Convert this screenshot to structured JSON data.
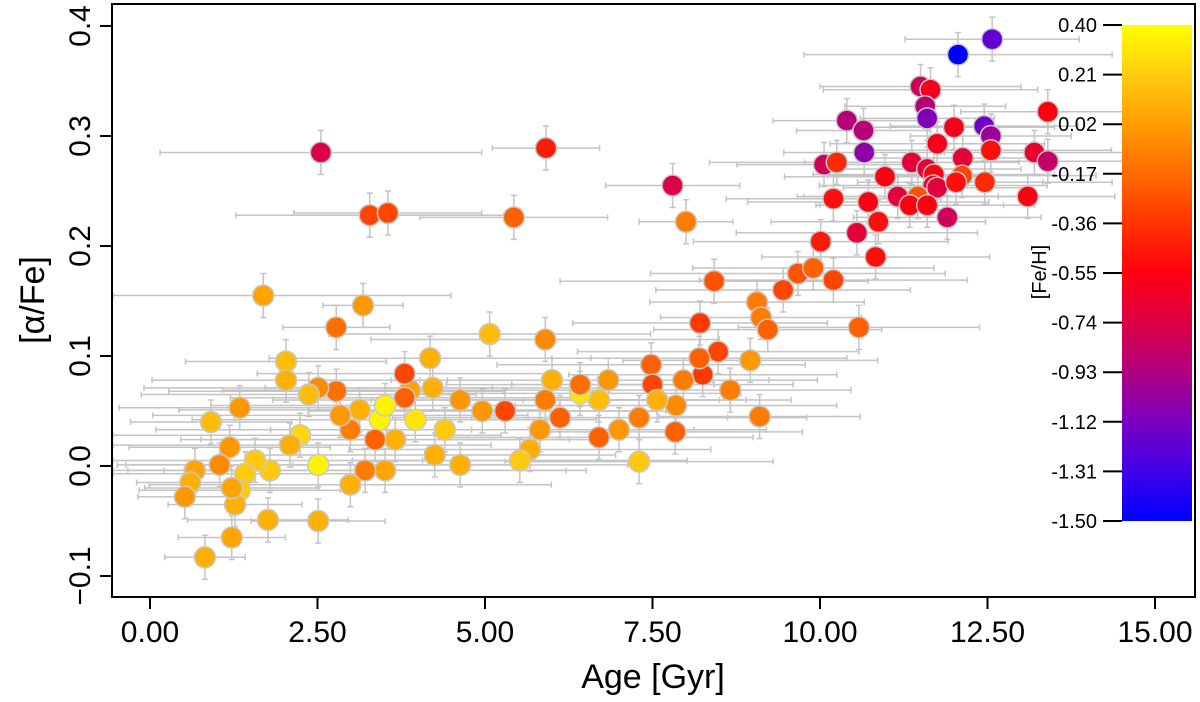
{
  "chart_data": {
    "type": "scatter",
    "title": "",
    "xlabel": "Age [Gyr]",
    "ylabel": "[α/Fe]",
    "xlim": [
      -0.5,
      15.5
    ],
    "ylim": [
      -0.12,
      0.42
    ],
    "xticks": [
      "0.00",
      "2.50",
      "5.00",
      "7.50",
      "10.00",
      "12.50",
      "15.00"
    ],
    "xtick_values": [
      0,
      2.5,
      5,
      7.5,
      10,
      12.5,
      15
    ],
    "yticks": [
      "−0.1",
      "0.0",
      "0.1",
      "0.2",
      "0.3",
      "0.4"
    ],
    "ytick_values": [
      -0.1,
      0.0,
      0.1,
      0.2,
      0.3,
      0.4
    ],
    "grid": false,
    "colorbar": {
      "label": "[Fe/H]",
      "range": [
        -1.5,
        0.4
      ],
      "ticks": [
        "0.40",
        "0.21",
        "0.02",
        "-0.17",
        "-0.36",
        "-0.55",
        "-0.74",
        "-0.93",
        "-1.12",
        "-1.31",
        "-1.50"
      ],
      "tick_values": [
        0.4,
        0.21,
        0.02,
        -0.17,
        -0.36,
        -0.55,
        -0.74,
        -0.93,
        -1.12,
        -1.31,
        -1.5
      ],
      "colormap": [
        [
          0.4,
          "#ffff00"
        ],
        [
          0.21,
          "#ffcc10"
        ],
        [
          0.02,
          "#ff9c00"
        ],
        [
          -0.17,
          "#ff6a00"
        ],
        [
          -0.36,
          "#ff3400"
        ],
        [
          -0.55,
          "#ff0010"
        ],
        [
          -0.74,
          "#dd0044"
        ],
        [
          -0.93,
          "#b00080"
        ],
        [
          -1.12,
          "#7a00c0"
        ],
        [
          -1.31,
          "#4000e8"
        ],
        [
          -1.5,
          "#0000ff"
        ]
      ]
    },
    "point_fields": [
      "age",
      "alpha_fe",
      "fe_h",
      "age_err"
    ],
    "alpha_fe_err": 0.02,
    "points": [
      [
        12.57,
        0.388,
        -1.2,
        1.3
      ],
      [
        12.06,
        0.374,
        -1.5,
        2.3
      ],
      [
        11.5,
        0.345,
        -0.8,
        1.5
      ],
      [
        11.65,
        0.342,
        -0.6,
        1.6
      ],
      [
        11.57,
        0.327,
        -0.9,
        1.2
      ],
      [
        11.6,
        0.316,
        -1.1,
        1.0
      ],
      [
        10.4,
        0.314,
        -0.9,
        1.1
      ],
      [
        10.65,
        0.305,
        -0.9,
        1.0
      ],
      [
        12.45,
        0.309,
        -1.15,
        1.4
      ],
      [
        12.55,
        0.3,
        -1.0,
        1.2
      ],
      [
        13.4,
        0.322,
        -0.55,
        1.3
      ],
      [
        12.0,
        0.308,
        -0.6,
        1.5
      ],
      [
        11.75,
        0.293,
        -0.6,
        1.6
      ],
      [
        10.66,
        0.285,
        -1.05,
        1.2
      ],
      [
        13.2,
        0.285,
        -0.65,
        1.5
      ],
      [
        13.4,
        0.277,
        -0.85,
        1.2
      ],
      [
        12.55,
        0.287,
        -0.5,
        1.8
      ],
      [
        12.13,
        0.28,
        -0.7,
        1.4
      ],
      [
        10.06,
        0.274,
        -0.8,
        1.3
      ],
      [
        10.25,
        0.276,
        -0.4,
        1.9
      ],
      [
        11.37,
        0.276,
        -0.7,
        1.6
      ],
      [
        11.6,
        0.27,
        -0.7,
        1.4
      ],
      [
        11.7,
        0.265,
        -0.55,
        1.8
      ],
      [
        10.97,
        0.263,
        -0.55,
        1.5
      ],
      [
        11.69,
        0.255,
        -0.65,
        1.7
      ],
      [
        12.12,
        0.264,
        -0.3,
        2.0
      ],
      [
        11.75,
        0.253,
        -0.7,
        1.4
      ],
      [
        12.03,
        0.258,
        -0.5,
        1.3
      ],
      [
        12.46,
        0.258,
        -0.4,
        1.9
      ],
      [
        10.72,
        0.24,
        -0.55,
        1.8
      ],
      [
        10.2,
        0.243,
        -0.5,
        1.6
      ],
      [
        11.16,
        0.245,
        -0.7,
        1.5
      ],
      [
        11.46,
        0.245,
        -0.25,
        1.7
      ],
      [
        11.34,
        0.237,
        -0.55,
        1.4
      ],
      [
        11.6,
        0.237,
        -0.55,
        1.6
      ],
      [
        13.1,
        0.245,
        -0.55,
        1.3
      ],
      [
        10.87,
        0.222,
        -0.5,
        1.6
      ],
      [
        10.55,
        0.212,
        -0.7,
        1.8
      ],
      [
        11.9,
        0.226,
        -0.8,
        1.4
      ],
      [
        10.83,
        0.19,
        -0.5,
        1.7
      ],
      [
        10.01,
        0.204,
        -0.45,
        1.9
      ],
      [
        10.2,
        0.169,
        -0.3,
        2.0
      ],
      [
        9.67,
        0.175,
        -0.25,
        2.2
      ],
      [
        9.9,
        0.18,
        -0.2,
        1.8
      ],
      [
        9.45,
        0.16,
        -0.3,
        1.9
      ],
      [
        9.06,
        0.149,
        -0.1,
        1.6
      ],
      [
        9.12,
        0.135,
        -0.1,
        1.5
      ],
      [
        9.22,
        0.124,
        -0.2,
        1.7
      ],
      [
        10.58,
        0.126,
        -0.2,
        1.8
      ],
      [
        8.42,
        0.168,
        -0.25,
        2.3
      ],
      [
        8.21,
        0.13,
        -0.35,
        1.9
      ],
      [
        8.48,
        0.104,
        -0.3,
        2.1
      ],
      [
        8.25,
        0.083,
        -0.35,
        2.0
      ],
      [
        8.66,
        0.069,
        -0.1,
        1.8
      ],
      [
        8.96,
        0.096,
        0.0,
        1.9
      ],
      [
        9.1,
        0.045,
        -0.1,
        1.5
      ],
      [
        8.2,
        0.098,
        -0.2,
        2.2
      ],
      [
        7.96,
        0.078,
        -0.1,
        2.0
      ],
      [
        7.85,
        0.055,
        -0.05,
        2.4
      ],
      [
        7.84,
        0.031,
        -0.2,
        1.9
      ],
      [
        7.48,
        0.092,
        -0.2,
        2.3
      ],
      [
        7.5,
        0.074,
        -0.3,
        2.1
      ],
      [
        7.57,
        0.06,
        0.1,
        2.0
      ],
      [
        7.3,
        0.044,
        -0.1,
        2.5
      ],
      [
        7.0,
        0.033,
        0.0,
        2.2
      ],
      [
        7.3,
        0.004,
        0.2,
        2.0
      ],
      [
        6.84,
        0.078,
        0.0,
        2.4
      ],
      [
        6.7,
        0.06,
        0.15,
        2.2
      ],
      [
        6.7,
        0.026,
        -0.2,
        2.3
      ],
      [
        6.42,
        0.066,
        0.3,
        2.4
      ],
      [
        6.42,
        0.074,
        -0.15,
        2.0
      ],
      [
        6.12,
        0.044,
        -0.2,
        2.5
      ],
      [
        5.9,
        0.06,
        -0.1,
        2.6
      ],
      [
        5.82,
        0.033,
        0.0,
        2.3
      ],
      [
        6.0,
        0.078,
        0.1,
        2.4
      ],
      [
        5.9,
        0.115,
        -0.05,
        2.6
      ],
      [
        5.67,
        0.015,
        0.1,
        2.7
      ],
      [
        5.52,
        0.005,
        0.2,
        2.5
      ],
      [
        5.3,
        0.05,
        -0.3,
        2.4
      ],
      [
        5.07,
        0.12,
        0.15,
        2.4
      ],
      [
        4.96,
        0.05,
        0.0,
        2.6
      ],
      [
        4.63,
        0.001,
        0.1,
        2.5
      ],
      [
        4.63,
        0.06,
        0.0,
        2.8
      ],
      [
        4.4,
        0.033,
        0.2,
        2.6
      ],
      [
        4.25,
        0.01,
        0.1,
        2.7
      ],
      [
        4.18,
        0.098,
        0.1,
        2.4
      ],
      [
        4.22,
        0.071,
        0.1,
        2.5
      ],
      [
        3.88,
        0.069,
        0.05,
        2.8
      ],
      [
        3.8,
        0.084,
        -0.3,
        2.2
      ],
      [
        3.8,
        0.062,
        -0.2,
        2.6
      ],
      [
        3.96,
        0.042,
        0.3,
        2.7
      ],
      [
        3.66,
        0.024,
        0.1,
        2.9
      ],
      [
        3.51,
        -0.004,
        0.05,
        3.0
      ],
      [
        3.43,
        0.042,
        0.35,
        2.8
      ],
      [
        3.51,
        0.055,
        0.35,
        2.6
      ],
      [
        3.36,
        0.024,
        -0.2,
        2.9
      ],
      [
        3.21,
        -0.004,
        -0.1,
        3.0
      ],
      [
        3.13,
        0.051,
        0.1,
        2.7
      ],
      [
        2.99,
        0.033,
        -0.1,
        2.9
      ],
      [
        2.99,
        -0.017,
        0.1,
        3.0
      ],
      [
        2.84,
        0.046,
        0.0,
        2.8
      ],
      [
        2.78,
        0.068,
        -0.15,
        2.5
      ],
      [
        2.78,
        0.126,
        -0.15,
        0.8
      ],
      [
        2.51,
        0.071,
        -0.05,
        2.6
      ],
      [
        2.51,
        0.001,
        0.35,
        3.0
      ],
      [
        2.51,
        -0.05,
        0.1,
        1.0
      ],
      [
        2.37,
        0.065,
        0.15,
        2.5
      ],
      [
        2.24,
        0.028,
        0.25,
        3.0
      ],
      [
        2.09,
        0.019,
        0.1,
        3.0
      ],
      [
        2.03,
        0.095,
        0.15,
        1.5
      ],
      [
        2.03,
        0.078,
        0.1,
        2.0
      ],
      [
        1.79,
        -0.004,
        0.2,
        2.8
      ],
      [
        1.76,
        -0.049,
        0.1,
        1.2
      ],
      [
        1.69,
        0.155,
        0.05,
        2.8
      ],
      [
        1.57,
        0.005,
        0.2,
        2.5
      ],
      [
        1.42,
        -0.007,
        0.2,
        2.2
      ],
      [
        1.34,
        -0.022,
        0.2,
        1.5
      ],
      [
        1.34,
        0.053,
        0.0,
        1.8
      ],
      [
        1.27,
        -0.035,
        0.1,
        1.0
      ],
      [
        1.22,
        -0.02,
        0.05,
        1.3
      ],
      [
        1.22,
        -0.065,
        0.05,
        0.8
      ],
      [
        1.19,
        0.017,
        0.0,
        1.5
      ],
      [
        1.04,
        0.001,
        -0.05,
        1.4
      ],
      [
        0.91,
        0.04,
        0.15,
        1.2
      ],
      [
        0.82,
        -0.083,
        0.1,
        0.6
      ],
      [
        0.67,
        -0.004,
        0.05,
        1.0
      ],
      [
        0.6,
        -0.015,
        0.1,
        0.8
      ],
      [
        0.52,
        -0.028,
        0.0,
        0.7
      ],
      [
        2.55,
        0.285,
        -0.75,
        2.4
      ],
      [
        5.91,
        0.289,
        -0.45,
        0.8
      ],
      [
        7.8,
        0.255,
        -0.75,
        1.0
      ],
      [
        8.0,
        0.222,
        -0.1,
        0.7
      ],
      [
        3.28,
        0.228,
        -0.3,
        2.0
      ],
      [
        3.55,
        0.23,
        -0.3,
        1.4
      ],
      [
        5.43,
        0.226,
        -0.2,
        1.4
      ],
      [
        3.18,
        0.146,
        0.0,
        0.6
      ]
    ]
  }
}
